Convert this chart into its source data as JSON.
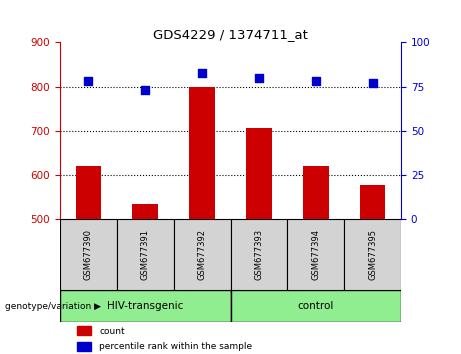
{
  "title": "GDS4229 / 1374711_at",
  "samples": [
    "GSM677390",
    "GSM677391",
    "GSM677392",
    "GSM677393",
    "GSM677394",
    "GSM677395"
  ],
  "bar_values": [
    620,
    535,
    800,
    707,
    620,
    578
  ],
  "bar_base": 500,
  "percentile_values": [
    78,
    73,
    83,
    80,
    78,
    77
  ],
  "bar_color": "#cc0000",
  "dot_color": "#0000cc",
  "ylim_left": [
    500,
    900
  ],
  "ylim_right": [
    0,
    100
  ],
  "yticks_left": [
    500,
    600,
    700,
    800,
    900
  ],
  "yticks_right": [
    0,
    25,
    50,
    75,
    100
  ],
  "group_label": "genotype/variation",
  "groups": [
    {
      "label": "HIV-transgenic",
      "start": 0,
      "end": 2,
      "color": "#90ee90"
    },
    {
      "label": "control",
      "start": 3,
      "end": 5,
      "color": "#90ee90"
    }
  ],
  "legend_items": [
    {
      "label": "count",
      "color": "#cc0000"
    },
    {
      "label": "percentile rank within the sample",
      "color": "#0000cc"
    }
  ],
  "left_tick_color": "#cc0000",
  "right_tick_color": "#0000cc",
  "bar_width": 0.45,
  "dot_size": 40,
  "sample_box_color": "#d3d3d3"
}
